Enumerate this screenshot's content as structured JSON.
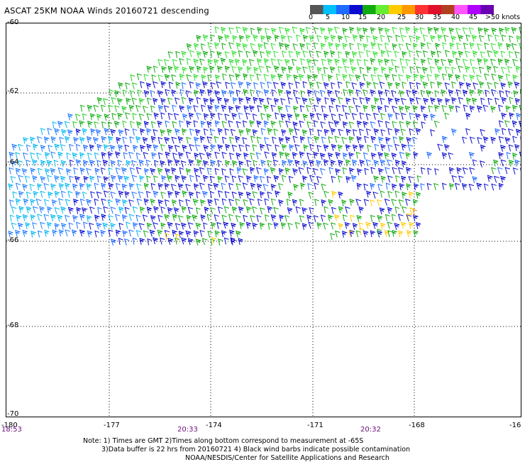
{
  "header": {
    "title": "ASCAT 25KM NOAA Winds 20160721 descending"
  },
  "colorbar": {
    "labels": [
      "0",
      "5",
      "10",
      "15",
      "20",
      "25",
      "30",
      "35",
      "40",
      "45",
      ">50 knots"
    ],
    "colors": [
      "#555555",
      "#00bfff",
      "#1e6bff",
      "#0a0ad0",
      "#11aa11",
      "#66ee33",
      "#ffcc00",
      "#ff9900",
      "#ff3333",
      "#e0102a",
      "#b04020",
      "#ff55ff",
      "#b000ff",
      "#6a00b0"
    ]
  },
  "map": {
    "latitude_labels": [
      "-60",
      "-62",
      "-64",
      "-66",
      "-68",
      "-70"
    ],
    "longitude_labels": [
      "-180",
      "-177",
      "-174",
      "-171",
      "-168",
      "-16"
    ],
    "pass_times": [
      "18:53",
      "20:33",
      "20:32"
    ]
  },
  "footer": {
    "line1": "Note: 1) Times are GMT 2)Times along bottom correspond to measurement at -65S",
    "line2": "3)Data buffer is 22 hrs from 20160721 4) Black wind barbs indicate possible contamination",
    "line3": "NOAA/NESDIS/Center for Satellite Applications and Research"
  }
}
